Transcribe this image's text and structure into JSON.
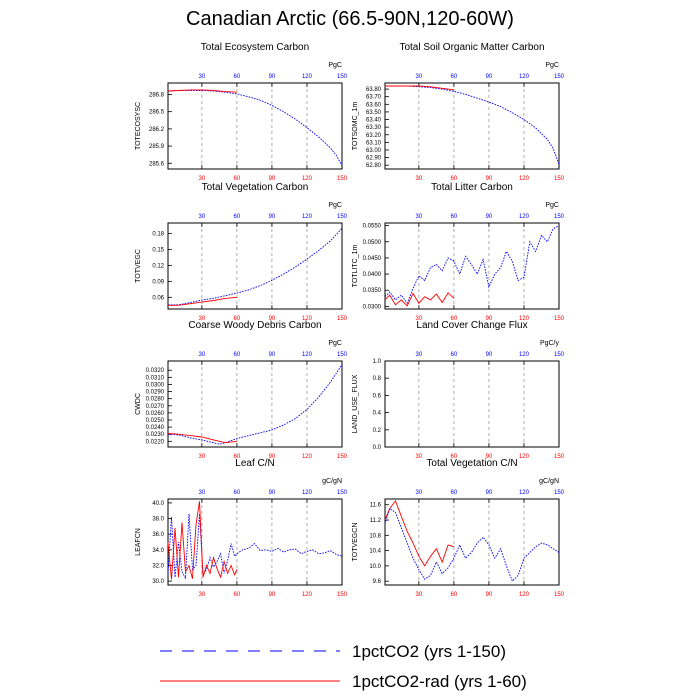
{
  "title": "Canadian Arctic (66.5-90N,120-60W)",
  "colors": {
    "blue_series": "#0000ff",
    "red_series": "#ff0000"
  },
  "legend": [
    {
      "label": "1pctCO2 (yrs 1-150)",
      "color": "#0000ff",
      "style": "dashed"
    },
    {
      "label": "1pctCO2-rad (yrs 1-60)",
      "color": "#ff0000",
      "style": "solid"
    }
  ],
  "chart_data": [
    {
      "type": "line",
      "title": "Total Ecosystem Carbon",
      "ylabel": "TOTECOSYSC",
      "units": "PgC",
      "xlim": [
        1,
        150
      ],
      "xticks": [
        30,
        60,
        90,
        120,
        150
      ],
      "top_xticks": [
        30,
        60,
        90,
        120,
        150
      ],
      "ylim": [
        285.5,
        287.0
      ],
      "yticks": [
        "285.6",
        "285.9",
        "286.2",
        "286.5",
        "286.8"
      ],
      "series": [
        {
          "name": "1pctCO2 (yrs 1-150)",
          "style": "dashed",
          "color": "#0000ff",
          "x": [
            1,
            10,
            20,
            30,
            40,
            50,
            60,
            70,
            80,
            90,
            100,
            110,
            120,
            130,
            140,
            145,
            150
          ],
          "y": [
            286.86,
            286.87,
            286.87,
            286.87,
            286.86,
            286.84,
            286.81,
            286.76,
            286.7,
            286.61,
            286.5,
            286.37,
            286.22,
            286.06,
            285.87,
            285.74,
            285.56
          ]
        },
        {
          "name": "1pctCO2-rad (yrs 1-60)",
          "style": "solid",
          "color": "#ff0000",
          "x": [
            1,
            10,
            20,
            30,
            40,
            50,
            60
          ],
          "y": [
            286.86,
            286.87,
            286.88,
            286.88,
            286.87,
            286.85,
            286.84
          ]
        }
      ]
    },
    {
      "type": "line",
      "title": "Total Soil Organic Matter Carbon",
      "ylabel": "TOTSOMC_1m",
      "units": "PgC",
      "xlim": [
        1,
        150
      ],
      "xticks": [
        30,
        60,
        90,
        120,
        150
      ],
      "top_xticks": [
        30,
        60,
        90,
        120,
        150
      ],
      "ylim": [
        62.75,
        63.88
      ],
      "yticks": [
        "62.80",
        "62.90",
        "63.00",
        "63.10",
        "63.20",
        "63.30",
        "63.40",
        "63.50",
        "63.60",
        "63.70",
        "63.80"
      ],
      "series": [
        {
          "name": "1pctCO2 (yrs 1-150)",
          "style": "dashed",
          "color": "#0000ff",
          "x": [
            1,
            10,
            20,
            30,
            40,
            50,
            60,
            70,
            80,
            90,
            100,
            110,
            120,
            130,
            140,
            145,
            150
          ],
          "y": [
            63.84,
            63.84,
            63.84,
            63.83,
            63.82,
            63.8,
            63.77,
            63.73,
            63.68,
            63.63,
            63.57,
            63.49,
            63.4,
            63.29,
            63.14,
            63.02,
            62.81
          ]
        },
        {
          "name": "1pctCO2-rad (yrs 1-60)",
          "style": "solid",
          "color": "#ff0000",
          "x": [
            1,
            10,
            20,
            30,
            40,
            50,
            60
          ],
          "y": [
            63.84,
            63.84,
            63.84,
            63.84,
            63.83,
            63.81,
            63.79
          ]
        }
      ]
    },
    {
      "type": "line",
      "title": "Total Vegetation Carbon",
      "ylabel": "TOTVEGC",
      "units": "PgC",
      "xlim": [
        1,
        150
      ],
      "xticks": [
        30,
        60,
        90,
        120,
        150
      ],
      "top_xticks": [
        30,
        60,
        90,
        120,
        150
      ],
      "ylim": [
        0.038,
        0.2
      ],
      "yticks": [
        "0.06",
        "0.09",
        "0.12",
        "0.15",
        "0.18"
      ],
      "series": [
        {
          "name": "1pctCO2 (yrs 1-150)",
          "style": "dashed",
          "color": "#0000ff",
          "x": [
            1,
            10,
            20,
            30,
            40,
            50,
            60,
            70,
            80,
            90,
            100,
            110,
            120,
            130,
            140,
            150
          ],
          "y": [
            0.046,
            0.046,
            0.05,
            0.055,
            0.058,
            0.063,
            0.068,
            0.074,
            0.082,
            0.092,
            0.104,
            0.117,
            0.132,
            0.148,
            0.166,
            0.19
          ]
        },
        {
          "name": "1pctCO2-rad (yrs 1-60)",
          "style": "solid",
          "color": "#ff0000",
          "x": [
            1,
            10,
            20,
            30,
            40,
            50,
            60
          ],
          "y": [
            0.045,
            0.045,
            0.048,
            0.051,
            0.054,
            0.058,
            0.06
          ]
        }
      ]
    },
    {
      "type": "line",
      "title": "Total Litter Carbon",
      "ylabel": "TOTLITC_1m",
      "units": "PgC",
      "xlim": [
        1,
        150
      ],
      "xticks": [
        30,
        60,
        90,
        120,
        150
      ],
      "top_xticks": [
        30,
        60,
        90,
        120,
        150
      ],
      "ylim": [
        0.0292,
        0.0558
      ],
      "yticks": [
        "0.0300",
        "0.0350",
        "0.0400",
        "0.0450",
        "0.0500",
        "0.0550"
      ],
      "series": [
        {
          "name": "1pctCO2 (yrs 1-150)",
          "style": "dashed",
          "color": "#0000ff",
          "x": [
            1,
            5,
            10,
            15,
            20,
            25,
            30,
            35,
            40,
            45,
            50,
            55,
            60,
            65,
            70,
            75,
            80,
            85,
            90,
            95,
            100,
            105,
            110,
            115,
            120,
            125,
            130,
            135,
            140,
            145,
            150
          ],
          "y": [
            0.033,
            0.0345,
            0.032,
            0.0335,
            0.031,
            0.0355,
            0.0395,
            0.038,
            0.042,
            0.043,
            0.041,
            0.045,
            0.044,
            0.04,
            0.0455,
            0.043,
            0.04,
            0.0445,
            0.036,
            0.04,
            0.042,
            0.047,
            0.044,
            0.038,
            0.039,
            0.05,
            0.047,
            0.052,
            0.05,
            0.054,
            0.055
          ]
        },
        {
          "name": "1pctCO2-rad (yrs 1-60)",
          "style": "solid",
          "color": "#ff0000",
          "x": [
            1,
            5,
            10,
            15,
            20,
            25,
            30,
            35,
            40,
            45,
            50,
            55,
            60
          ],
          "y": [
            0.032,
            0.0335,
            0.0305,
            0.032,
            0.0302,
            0.034,
            0.031,
            0.033,
            0.032,
            0.0338,
            0.0312,
            0.0342,
            0.0325
          ]
        }
      ]
    },
    {
      "type": "line",
      "title": "Coarse Woody Debris Carbon",
      "ylabel": "CWDC",
      "units": "PgC",
      "xlim": [
        1,
        150
      ],
      "xticks": [
        30,
        60,
        90,
        120,
        150
      ],
      "top_xticks": [
        30,
        60,
        90,
        120,
        150
      ],
      "ylim": [
        0.0212,
        0.0333
      ],
      "yticks": [
        "0.0220",
        "0.0230",
        "0.0240",
        "0.0250",
        "0.0260",
        "0.0270",
        "0.0280",
        "0.0290",
        "0.0300",
        "0.0310",
        "0.0320"
      ],
      "series": [
        {
          "name": "1pctCO2 (yrs 1-150)",
          "style": "dashed",
          "color": "#0000ff",
          "x": [
            1,
            10,
            20,
            30,
            40,
            45,
            50,
            60,
            70,
            80,
            90,
            100,
            110,
            120,
            130,
            140,
            150
          ],
          "y": [
            0.023,
            0.0229,
            0.0225,
            0.0222,
            0.0218,
            0.0216,
            0.0218,
            0.0224,
            0.0228,
            0.0232,
            0.0236,
            0.0243,
            0.0252,
            0.0265,
            0.0282,
            0.0303,
            0.0328
          ]
        },
        {
          "name": "1pctCO2-rad (yrs 1-60)",
          "style": "solid",
          "color": "#ff0000",
          "x": [
            1,
            10,
            20,
            30,
            40,
            50,
            60
          ],
          "y": [
            0.0231,
            0.023,
            0.0228,
            0.0226,
            0.0222,
            0.0218,
            0.022
          ]
        }
      ]
    },
    {
      "type": "line",
      "title": "Land Cover Change Flux",
      "ylabel": "LAND_USE_FLUX",
      "units": "PgC/y",
      "xlim": [
        1,
        150
      ],
      "xticks": [
        30,
        60,
        90,
        120,
        150
      ],
      "top_xticks": [
        30,
        60,
        90,
        120,
        150
      ],
      "ylim": [
        0.0,
        1.0
      ],
      "yticks": [
        "0.0",
        "0.2",
        "0.4",
        "0.6",
        "0.8",
        "1.0"
      ],
      "series": []
    },
    {
      "type": "line",
      "title": "Leaf C/N",
      "ylabel": "LEAFCN",
      "units": "gC/gN",
      "xlim": [
        1,
        150
      ],
      "xticks": [
        30,
        60,
        90,
        120,
        150
      ],
      "top_xticks": [
        30,
        60,
        90,
        120,
        150
      ],
      "ylim": [
        29.5,
        40.5
      ],
      "yticks": [
        "30.0",
        "32.0",
        "34.0",
        "36.0",
        "38.0",
        "40.0"
      ],
      "series": [
        {
          "name": "1pctCO2 (yrs 1-150)",
          "style": "dashed",
          "color": "#0000ff",
          "x": [
            1,
            4,
            7,
            10,
            13,
            16,
            19,
            22,
            25,
            28,
            31,
            34,
            37,
            40,
            43,
            46,
            49,
            52,
            55,
            58,
            61,
            65,
            70,
            75,
            80,
            85,
            90,
            95,
            100,
            105,
            110,
            115,
            120,
            125,
            130,
            135,
            140,
            145,
            150
          ],
          "y": [
            31.0,
            38.2,
            30.5,
            35.0,
            31.2,
            30.4,
            38.6,
            31.5,
            32.0,
            38.6,
            30.8,
            31.5,
            33.0,
            31.8,
            32.5,
            33.5,
            31.0,
            32.6,
            34.8,
            33.2,
            33.6,
            34.0,
            34.2,
            34.8,
            33.9,
            34.0,
            33.8,
            34.2,
            33.7,
            34.0,
            34.1,
            33.5,
            33.8,
            34.0,
            33.5,
            33.6,
            33.9,
            33.4,
            33.2
          ]
        },
        {
          "name": "1pctCO2-rad (yrs 1-60)",
          "style": "solid",
          "color": "#ff0000",
          "x": [
            1,
            4,
            7,
            10,
            13,
            16,
            19,
            22,
            25,
            28,
            31,
            34,
            37,
            40,
            43,
            46,
            49,
            52,
            55,
            58,
            60
          ],
          "y": [
            35.0,
            30.2,
            36.8,
            30.5,
            37.5,
            31.2,
            32.0,
            30.3,
            37.2,
            40.2,
            30.5,
            32.0,
            31.0,
            33.0,
            31.6,
            30.5,
            32.5,
            31.0,
            32.0,
            30.8,
            31.5
          ]
        }
      ]
    },
    {
      "type": "line",
      "title": "Total Vegetation C/N",
      "ylabel": "TOTVEGCN",
      "units": "gC/gN",
      "xlim": [
        1,
        150
      ],
      "xticks": [
        30,
        60,
        90,
        120,
        150
      ],
      "top_xticks": [
        30,
        60,
        90,
        120,
        150
      ],
      "ylim": [
        9.5,
        11.75
      ],
      "yticks": [
        "9.6",
        "10.0",
        "10.4",
        "10.8",
        "11.2",
        "11.6"
      ],
      "series": [
        {
          "name": "1pctCO2 (yrs 1-150)",
          "style": "dashed",
          "color": "#0000ff",
          "x": [
            1,
            5,
            10,
            15,
            20,
            25,
            30,
            35,
            40,
            45,
            50,
            55,
            60,
            65,
            70,
            75,
            80,
            85,
            90,
            95,
            100,
            105,
            110,
            115,
            120,
            125,
            130,
            135,
            140,
            145,
            150
          ],
          "y": [
            11.1,
            11.5,
            11.4,
            11.0,
            10.6,
            10.2,
            9.9,
            9.65,
            9.75,
            10.1,
            9.8,
            9.95,
            10.2,
            10.55,
            10.2,
            10.35,
            10.6,
            10.75,
            10.55,
            10.2,
            10.45,
            10.0,
            9.6,
            9.75,
            10.2,
            10.35,
            10.5,
            10.6,
            10.55,
            10.45,
            10.35
          ]
        },
        {
          "name": "1pctCO2-rad (yrs 1-60)",
          "style": "solid",
          "color": "#ff0000",
          "x": [
            1,
            5,
            10,
            15,
            20,
            25,
            30,
            35,
            40,
            45,
            50,
            55,
            60
          ],
          "y": [
            11.2,
            11.5,
            11.7,
            11.3,
            10.9,
            10.6,
            10.25,
            10.0,
            10.25,
            10.45,
            10.1,
            10.55,
            10.5
          ]
        }
      ]
    }
  ]
}
